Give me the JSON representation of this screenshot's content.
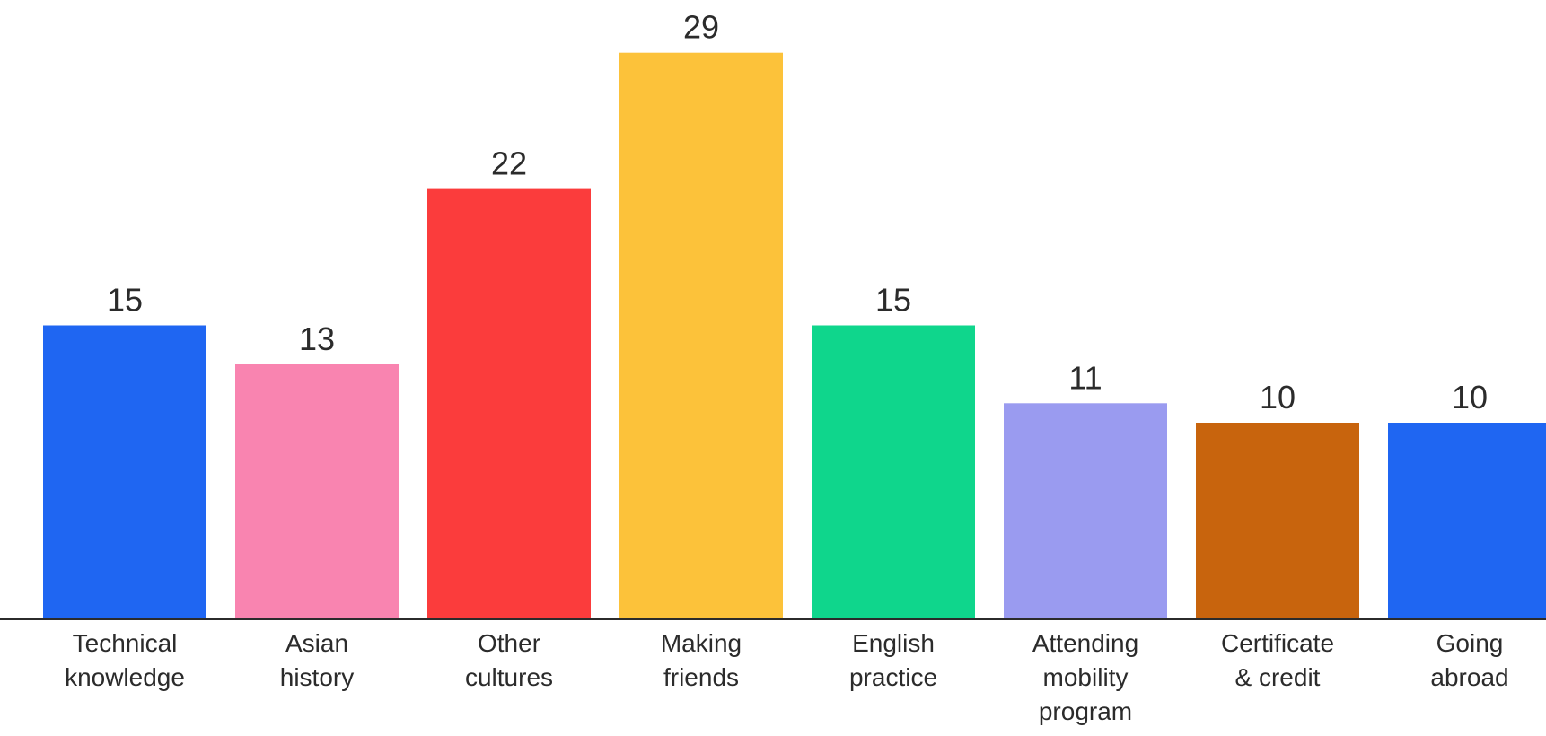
{
  "chart_data": {
    "type": "bar",
    "categories": [
      [
        "Technical",
        "knowledge"
      ],
      [
        "Asian",
        "history"
      ],
      [
        "Other",
        "cultures"
      ],
      [
        "Making",
        "friends"
      ],
      [
        "English",
        "practice"
      ],
      [
        "Attending",
        "mobility",
        "program"
      ],
      [
        "Certificate",
        "& credit"
      ],
      [
        "Going",
        "abroad"
      ]
    ],
    "values": [
      15,
      13,
      22,
      29,
      15,
      11,
      10,
      10
    ],
    "colors": [
      "#1f66f2",
      "#f984b0",
      "#fb3c3c",
      "#fcc23a",
      "#0fd68c",
      "#9a9bf0",
      "#c8640d",
      "#1f66f2"
    ],
    "title": "",
    "xlabel": "",
    "ylabel": "",
    "ylim": [
      0,
      30
    ],
    "grid": false,
    "legend": "none"
  }
}
